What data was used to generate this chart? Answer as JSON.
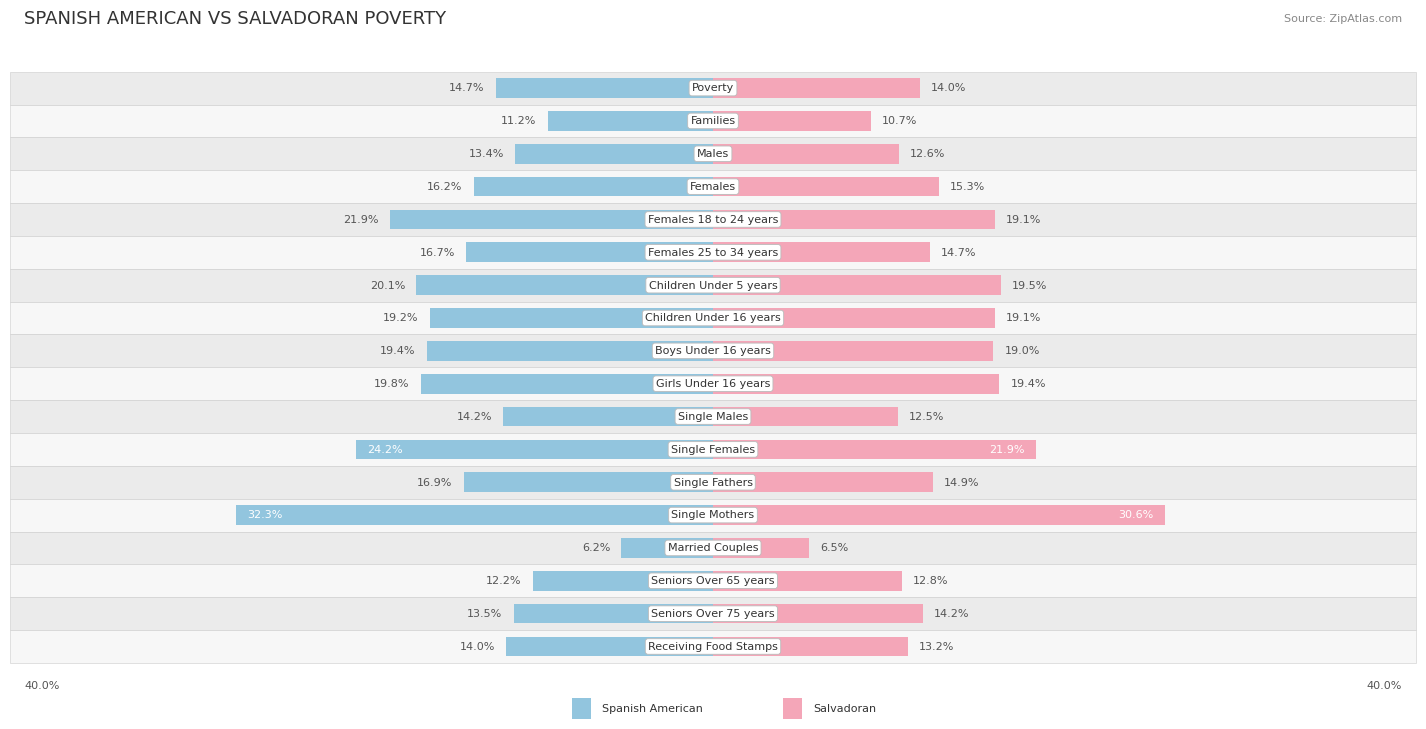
{
  "title": "SPANISH AMERICAN VS SALVADORAN POVERTY",
  "source": "Source: ZipAtlas.com",
  "categories": [
    "Poverty",
    "Families",
    "Males",
    "Females",
    "Females 18 to 24 years",
    "Females 25 to 34 years",
    "Children Under 5 years",
    "Children Under 16 years",
    "Boys Under 16 years",
    "Girls Under 16 years",
    "Single Males",
    "Single Females",
    "Single Fathers",
    "Single Mothers",
    "Married Couples",
    "Seniors Over 65 years",
    "Seniors Over 75 years",
    "Receiving Food Stamps"
  ],
  "spanish_american": [
    14.7,
    11.2,
    13.4,
    16.2,
    21.9,
    16.7,
    20.1,
    19.2,
    19.4,
    19.8,
    14.2,
    24.2,
    16.9,
    32.3,
    6.2,
    12.2,
    13.5,
    14.0
  ],
  "salvadoran": [
    14.0,
    10.7,
    12.6,
    15.3,
    19.1,
    14.7,
    19.5,
    19.1,
    19.0,
    19.4,
    12.5,
    21.9,
    14.9,
    30.6,
    6.5,
    12.8,
    14.2,
    13.2
  ],
  "blue_color": "#92C5DE",
  "pink_color": "#F4A6B8",
  "row_bg_odd": "#EBEBEB",
  "row_bg_even": "#F7F7F7",
  "max_val": 40.0,
  "axis_label": "40.0%",
  "legend_blue": "Spanish American",
  "legend_pink": "Salvadoran",
  "title_fontsize": 13,
  "source_fontsize": 8,
  "label_fontsize": 8,
  "cat_fontsize": 8
}
